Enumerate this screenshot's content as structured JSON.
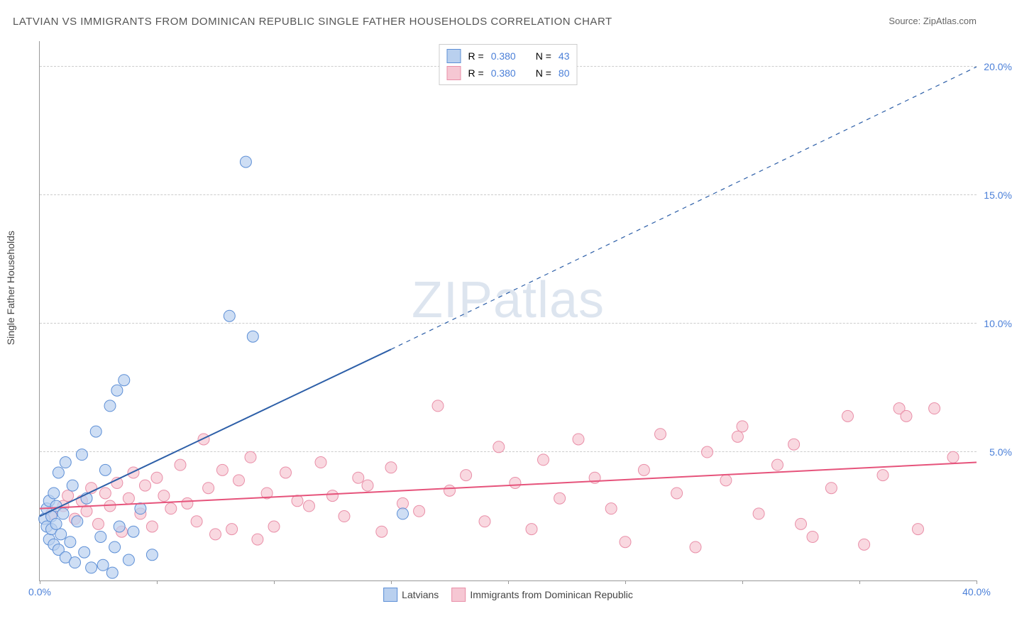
{
  "title": "LATVIAN VS IMMIGRANTS FROM DOMINICAN REPUBLIC SINGLE FATHER HOUSEHOLDS CORRELATION CHART",
  "source_label": "Source:",
  "source_value": "ZipAtlas.com",
  "y_axis_label": "Single Father Households",
  "watermark_pre": "ZIP",
  "watermark_post": "atlas",
  "chart": {
    "type": "scatter",
    "x_range": [
      0,
      40
    ],
    "y_range": [
      0,
      21
    ],
    "y_ticks": [
      5,
      10,
      15,
      20
    ],
    "y_tick_labels": [
      "5.0%",
      "10.0%",
      "15.0%",
      "20.0%"
    ],
    "x_ticks": [
      0,
      5,
      10,
      15,
      20,
      25,
      30,
      35,
      40
    ],
    "x_tick_labels_shown": {
      "0": "0.0%",
      "40": "40.0%"
    },
    "background_color": "#ffffff",
    "grid_color": "#cccccc",
    "axis_color": "#999999",
    "label_color": "#4a7fd8"
  },
  "legend_top": {
    "rows": [
      {
        "swatch_fill": "#b9d0ef",
        "swatch_stroke": "#5d8fd6",
        "r_label": "R =",
        "r_value": "0.380",
        "n_label": "N =",
        "n_value": "43"
      },
      {
        "swatch_fill": "#f6c7d3",
        "swatch_stroke": "#e98fa8",
        "r_label": "R =",
        "r_value": "0.380",
        "n_label": "N =",
        "n_value": "80"
      }
    ],
    "value_color": "#4a7fd8",
    "text_color": "#444444"
  },
  "legend_bottom": {
    "items": [
      {
        "swatch_fill": "#b9d0ef",
        "swatch_stroke": "#5d8fd6",
        "label": "Latvians"
      },
      {
        "swatch_fill": "#f6c7d3",
        "swatch_stroke": "#e98fa8",
        "label": "Immigrants from Dominican Republic"
      }
    ]
  },
  "series": {
    "latvians": {
      "color_fill": "#b9d0ef",
      "color_stroke": "#5d8fd6",
      "marker_radius": 8,
      "marker_opacity": 0.7,
      "trend": {
        "x1": 0,
        "y1": 2.5,
        "x2_solid": 15,
        "y2_solid": 9.0,
        "x2_dash": 40,
        "y2_dash": 20.0,
        "stroke": "#2d5fa8",
        "width": 2
      },
      "points": [
        [
          0.2,
          2.4
        ],
        [
          0.3,
          2.1
        ],
        [
          0.3,
          2.8
        ],
        [
          0.4,
          1.6
        ],
        [
          0.4,
          3.1
        ],
        [
          0.5,
          2.0
        ],
        [
          0.5,
          2.5
        ],
        [
          0.6,
          1.4
        ],
        [
          0.6,
          3.4
        ],
        [
          0.7,
          2.2
        ],
        [
          0.7,
          2.9
        ],
        [
          0.8,
          1.2
        ],
        [
          0.8,
          4.2
        ],
        [
          0.9,
          1.8
        ],
        [
          1.0,
          2.6
        ],
        [
          1.1,
          0.9
        ],
        [
          1.1,
          4.6
        ],
        [
          1.3,
          1.5
        ],
        [
          1.4,
          3.7
        ],
        [
          1.5,
          0.7
        ],
        [
          1.6,
          2.3
        ],
        [
          1.8,
          4.9
        ],
        [
          1.9,
          1.1
        ],
        [
          2.0,
          3.2
        ],
        [
          2.2,
          0.5
        ],
        [
          2.4,
          5.8
        ],
        [
          2.6,
          1.7
        ],
        [
          2.8,
          4.3
        ],
        [
          3.0,
          6.8
        ],
        [
          3.2,
          1.3
        ],
        [
          3.3,
          7.4
        ],
        [
          3.4,
          2.1
        ],
        [
          3.6,
          7.8
        ],
        [
          3.8,
          0.8
        ],
        [
          4.0,
          1.9
        ],
        [
          4.3,
          2.8
        ],
        [
          4.8,
          1.0
        ],
        [
          8.1,
          10.3
        ],
        [
          8.8,
          16.3
        ],
        [
          9.1,
          9.5
        ],
        [
          3.1,
          0.3
        ],
        [
          2.7,
          0.6
        ],
        [
          15.5,
          2.6
        ]
      ]
    },
    "dominican": {
      "color_fill": "#f6c7d3",
      "color_stroke": "#e98fa8",
      "marker_radius": 8,
      "marker_opacity": 0.7,
      "trend": {
        "x1": 0,
        "y1": 2.8,
        "x2": 40,
        "y2": 4.6,
        "stroke": "#e6537b",
        "width": 2
      },
      "points": [
        [
          0.5,
          2.6
        ],
        [
          1.0,
          2.9
        ],
        [
          1.2,
          3.3
        ],
        [
          1.5,
          2.4
        ],
        [
          1.8,
          3.1
        ],
        [
          2.0,
          2.7
        ],
        [
          2.2,
          3.6
        ],
        [
          2.5,
          2.2
        ],
        [
          2.8,
          3.4
        ],
        [
          3.0,
          2.9
        ],
        [
          3.3,
          3.8
        ],
        [
          3.5,
          1.9
        ],
        [
          3.8,
          3.2
        ],
        [
          4.0,
          4.2
        ],
        [
          4.3,
          2.6
        ],
        [
          4.5,
          3.7
        ],
        [
          4.8,
          2.1
        ],
        [
          5.0,
          4.0
        ],
        [
          5.3,
          3.3
        ],
        [
          5.6,
          2.8
        ],
        [
          6.0,
          4.5
        ],
        [
          6.3,
          3.0
        ],
        [
          6.7,
          2.3
        ],
        [
          7.0,
          5.5
        ],
        [
          7.2,
          3.6
        ],
        [
          7.5,
          1.8
        ],
        [
          7.8,
          4.3
        ],
        [
          8.2,
          2.0
        ],
        [
          8.5,
          3.9
        ],
        [
          9.0,
          4.8
        ],
        [
          9.3,
          1.6
        ],
        [
          9.7,
          3.4
        ],
        [
          10.0,
          2.1
        ],
        [
          10.5,
          4.2
        ],
        [
          11.0,
          3.1
        ],
        [
          11.5,
          2.9
        ],
        [
          12.0,
          4.6
        ],
        [
          12.5,
          3.3
        ],
        [
          13.0,
          2.5
        ],
        [
          13.6,
          4.0
        ],
        [
          14.0,
          3.7
        ],
        [
          14.6,
          1.9
        ],
        [
          15.0,
          4.4
        ],
        [
          15.5,
          3.0
        ],
        [
          16.2,
          2.7
        ],
        [
          17.0,
          6.8
        ],
        [
          17.5,
          3.5
        ],
        [
          18.2,
          4.1
        ],
        [
          19.0,
          2.3
        ],
        [
          19.6,
          5.2
        ],
        [
          20.3,
          3.8
        ],
        [
          21.0,
          2.0
        ],
        [
          21.5,
          4.7
        ],
        [
          22.2,
          3.2
        ],
        [
          23.0,
          5.5
        ],
        [
          23.7,
          4.0
        ],
        [
          24.4,
          2.8
        ],
        [
          25.0,
          1.5
        ],
        [
          25.8,
          4.3
        ],
        [
          26.5,
          5.7
        ],
        [
          27.2,
          3.4
        ],
        [
          28.0,
          1.3
        ],
        [
          28.5,
          5.0
        ],
        [
          29.3,
          3.9
        ],
        [
          30.0,
          6.0
        ],
        [
          30.7,
          2.6
        ],
        [
          31.5,
          4.5
        ],
        [
          32.2,
          5.3
        ],
        [
          33.0,
          1.7
        ],
        [
          33.8,
          3.6
        ],
        [
          34.5,
          6.4
        ],
        [
          35.2,
          1.4
        ],
        [
          36.0,
          4.1
        ],
        [
          36.7,
          6.7
        ],
        [
          37.0,
          6.4
        ],
        [
          37.5,
          2.0
        ],
        [
          38.2,
          6.7
        ],
        [
          39.0,
          4.8
        ],
        [
          32.5,
          2.2
        ],
        [
          29.8,
          5.6
        ]
      ]
    }
  }
}
